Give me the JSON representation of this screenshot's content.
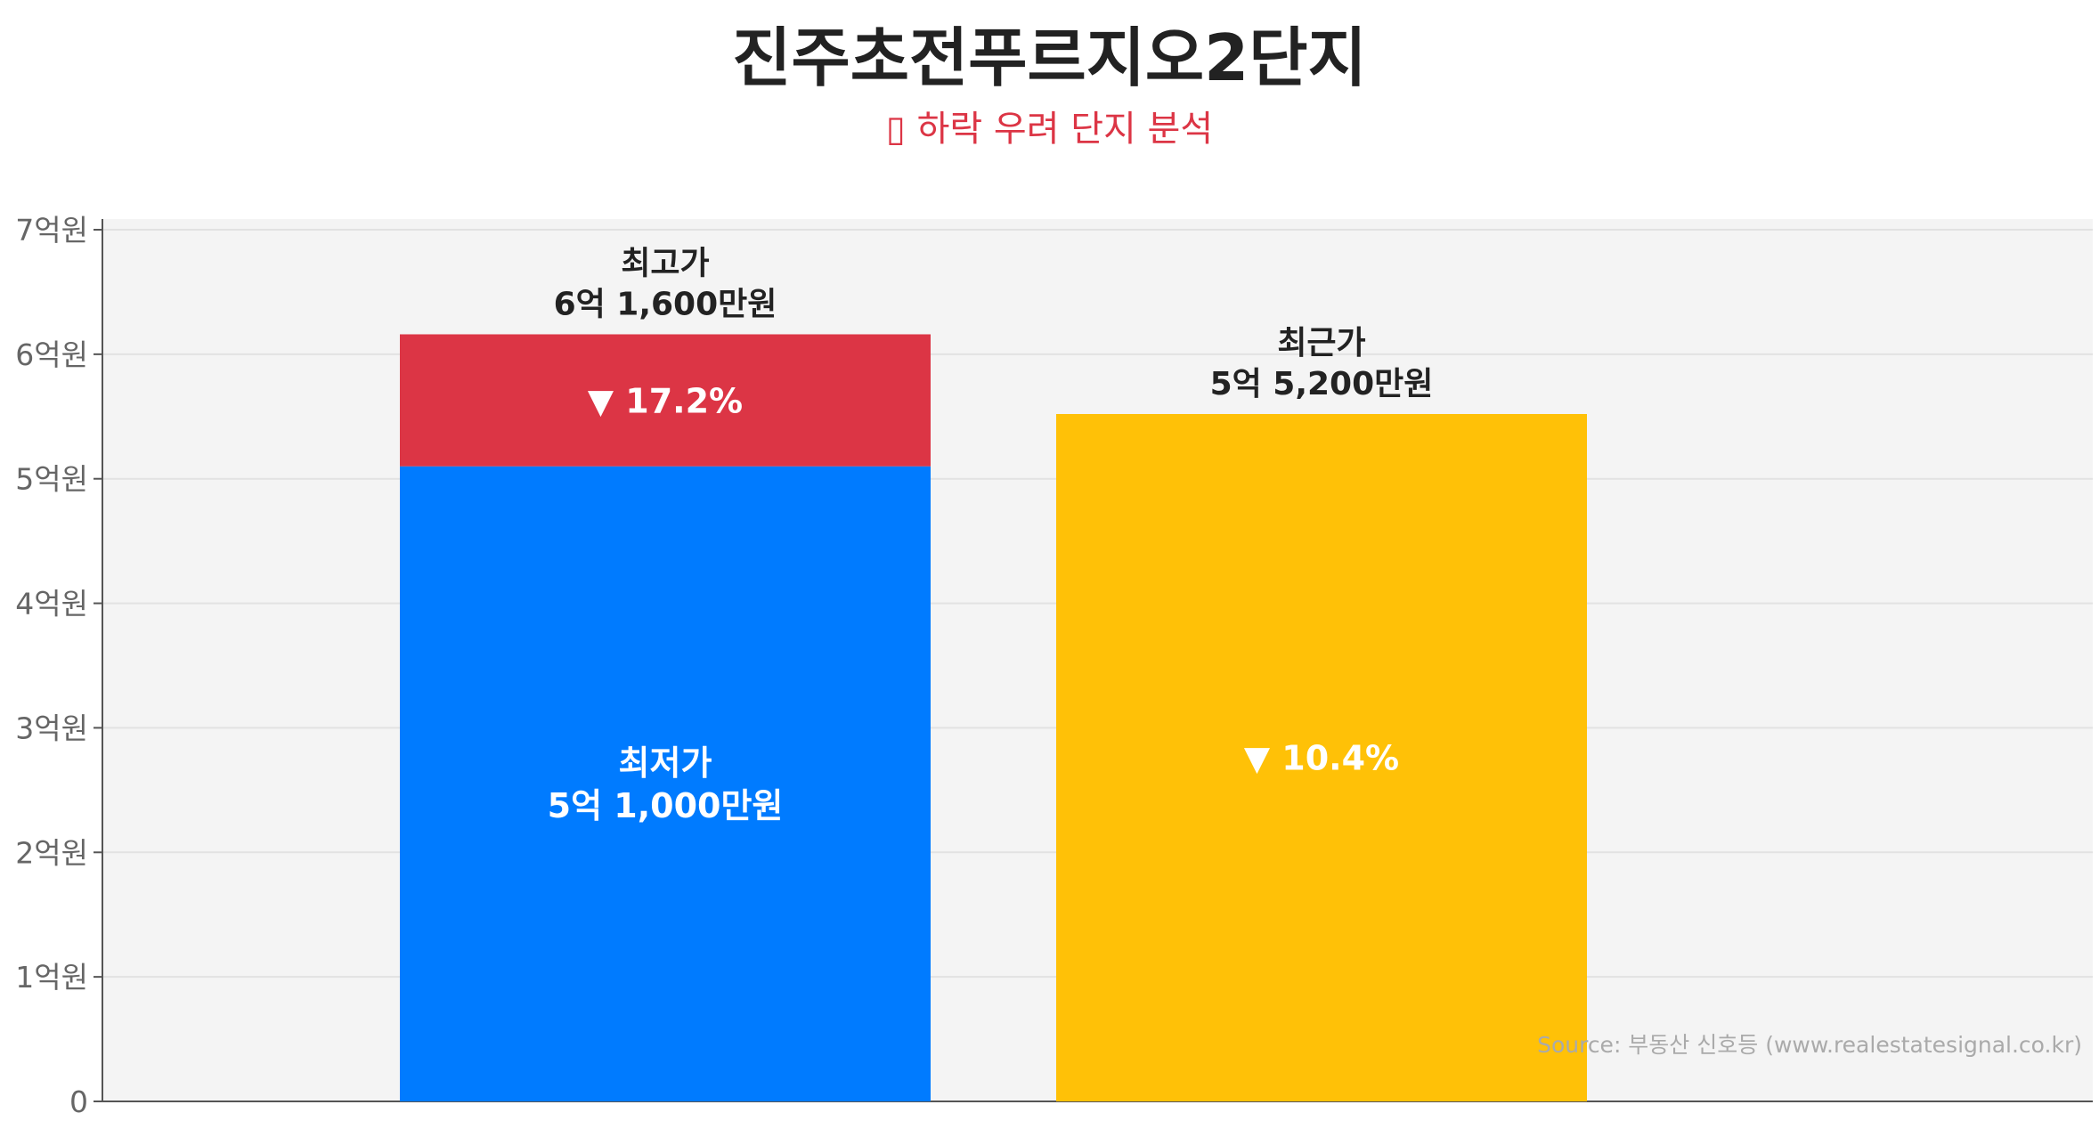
{
  "title": "진주초전푸르지오2단지",
  "subtitle": "▯ 하락 우려 단지 분석",
  "colors": {
    "subtitle": "#dc3545",
    "lowest": "#007bff",
    "drop": "#dc3545",
    "recent": "#ffc107",
    "plot_bg": "#f4f4f4",
    "grid": "#e2e2e2",
    "axis_text": "#666666",
    "label_text": "#222222",
    "source_text": "#aaaaaa"
  },
  "source": "Source: 부동산 신호등 (www.realestatesignal.co.kr)",
  "chart_data": {
    "type": "bar",
    "unit": "만원",
    "ylim": [
      0,
      70000
    ],
    "y_ticks": [
      {
        "value": 0,
        "label": "0"
      },
      {
        "value": 10000,
        "label": "1억원"
      },
      {
        "value": 20000,
        "label": "2억원"
      },
      {
        "value": 30000,
        "label": "3억원"
      },
      {
        "value": 40000,
        "label": "4억원"
      },
      {
        "value": 50000,
        "label": "5억원"
      },
      {
        "value": 60000,
        "label": "6억원"
      },
      {
        "value": 70000,
        "label": "7억원"
      }
    ],
    "grid": true,
    "bars": [
      {
        "slot": 1,
        "segments": [
          {
            "key": "lowest",
            "from": 0,
            "to": 51000,
            "color_key": "lowest",
            "label_lines": [
              "최저가",
              "5억 1,000만원"
            ]
          },
          {
            "key": "drop",
            "from": 51000,
            "to": 61600,
            "color_key": "drop",
            "label_lines": [
              "▼ 17.2%"
            ]
          }
        ],
        "top_label_lines": [
          "최고가",
          "6억 1,600만원"
        ]
      },
      {
        "slot": 2,
        "segments": [
          {
            "key": "recent",
            "from": 0,
            "to": 55200,
            "color_key": "recent",
            "label_lines": [
              "▼ 10.4%"
            ]
          }
        ],
        "top_label_lines": [
          "최근가",
          "5억 5,200만원"
        ]
      }
    ],
    "values": {
      "lowest": 51000,
      "highest": 61600,
      "recent": 55200,
      "drop_from_highest_pct": 17.2,
      "recent_vs_highest_pct": 10.4
    }
  }
}
